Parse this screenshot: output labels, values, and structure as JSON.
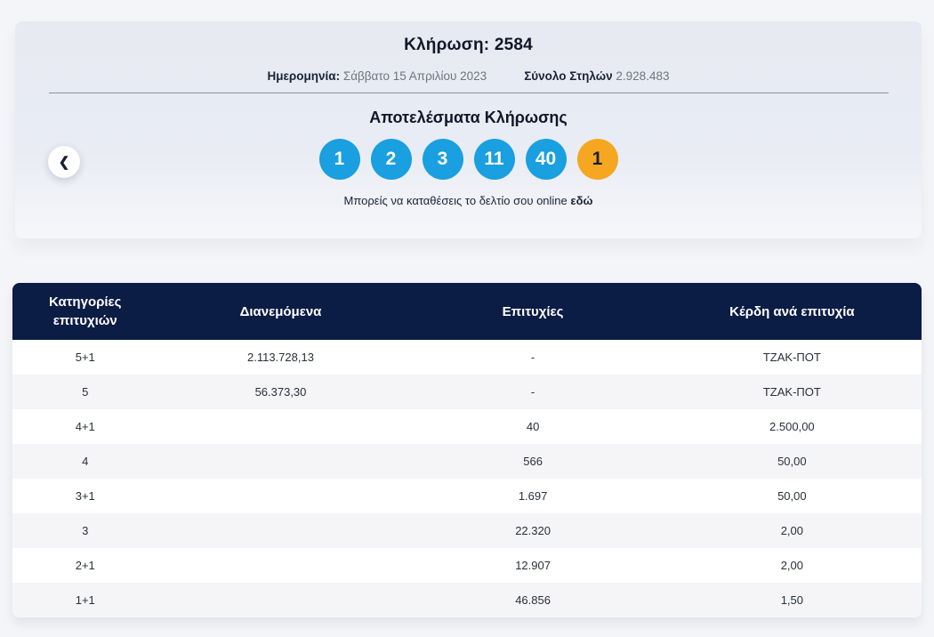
{
  "draw_card": {
    "title": "Κλήρωση: 2584",
    "date_label": "Ημερομηνία:",
    "date_value": "Σάββατο 15 Απριλίου 2023",
    "total_columns_label": "Σύνολο Στηλών",
    "total_columns_value": "2.928.483",
    "results_title": "Αποτελέσματα Κλήρωσης",
    "numbers": [
      "1",
      "2",
      "3",
      "11",
      "40"
    ],
    "tzoker_number": "1",
    "cta_text": "Μπορείς να καταθέσεις το δελτίο σου online",
    "cta_link_label": "εδώ",
    "prev_button_glyph": "❮"
  },
  "winnings_table": {
    "headers": {
      "categories": "Κατηγορίες επιτυχιών",
      "distributed": "Διανεμόμενα",
      "winners": "Επιτυχίες",
      "prize_per_win": "Κέρδη ανά επιτυχία"
    },
    "rows": [
      {
        "category": "5+1",
        "distributed": "2.113.728,13",
        "winners": "-",
        "prize": "ΤΖΑΚ-ΠΟΤ"
      },
      {
        "category": "5",
        "distributed": "56.373,30",
        "winners": "-",
        "prize": "ΤΖΑΚ-ΠΟΤ"
      },
      {
        "category": "4+1",
        "distributed": "",
        "winners": "40",
        "prize": "2.500,00"
      },
      {
        "category": "4",
        "distributed": "",
        "winners": "566",
        "prize": "50,00"
      },
      {
        "category": "3+1",
        "distributed": "",
        "winners": "1.697",
        "prize": "50,00"
      },
      {
        "category": "3",
        "distributed": "",
        "winners": "22.320",
        "prize": "2,00"
      },
      {
        "category": "2+1",
        "distributed": "",
        "winners": "12.907",
        "prize": "2,00"
      },
      {
        "category": "1+1",
        "distributed": "",
        "winners": "46.856",
        "prize": "1,50"
      }
    ]
  },
  "colors": {
    "page_bg": "#f4f5f8",
    "card_bg": "#e9ecf4",
    "ball_blue": "#1a9fe0",
    "ball_orange": "#f6a722",
    "table_header_navy": "#0b1c45",
    "row_stripe": "#f5f5f8"
  }
}
